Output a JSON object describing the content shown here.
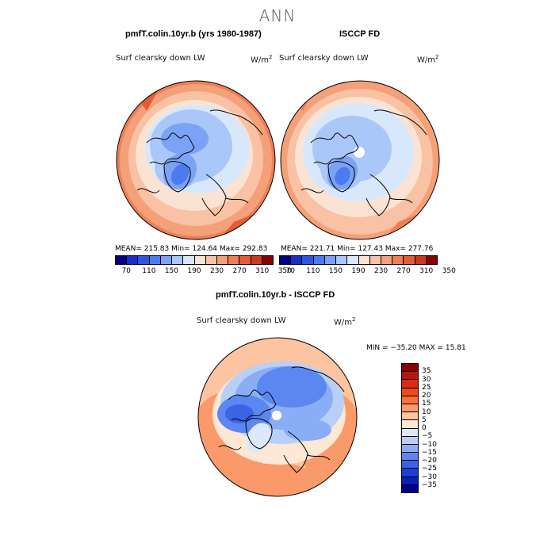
{
  "title": "ANN",
  "panels": {
    "model": {
      "title": "pmfT.colin.10yr.b (yrs 1980-1987)",
      "field_label": "Surf clearsky down LW",
      "units_base": "W/m",
      "units_exp": "2",
      "stats": "MEAN= 215.83   Min= 124.64   Max= 292.83"
    },
    "obs": {
      "title": "ISCCP FD",
      "field_label": "Surf clearsky down LW",
      "units_base": "W/m",
      "units_exp": "2",
      "stats": "MEAN= 221.71   Min= 127.43   Max= 277.76"
    },
    "diff": {
      "title": "pmfT.colin.10yr.b - ISCCP FD",
      "field_label": "Surf clearsky down LW",
      "units_base": "W/m",
      "units_exp": "2",
      "stats": "MIN = −35.20  MAX =  15.81"
    }
  },
  "top_colorbar": {
    "colors": [
      "#000080",
      "#1a2ccc",
      "#2f55e6",
      "#4a7cf0",
      "#7aa3f5",
      "#aac7fa",
      "#d8e8fc",
      "#fbe3d3",
      "#f9c2a4",
      "#f4a078",
      "#f07e55",
      "#e55c36",
      "#cc3a1e",
      "#8b0000"
    ],
    "tick_labels": [
      "70",
      "110",
      "150",
      "190",
      "230",
      "270",
      "310",
      "350"
    ]
  },
  "diff_colorbar": {
    "colors": [
      "#8b0000",
      "#b81414",
      "#d92b0d",
      "#f04a15",
      "#f8713a",
      "#fa9a6a",
      "#fcc4a0",
      "#fde8d6",
      "#dde9fb",
      "#b8d0f8",
      "#8aaef5",
      "#5d87f0",
      "#3a63e6",
      "#1e3ed8",
      "#0a1fb8",
      "#00008b"
    ],
    "tick_labels": [
      "35",
      "30",
      "25",
      "20",
      "15",
      "10",
      "5",
      "0",
      "−5",
      "−10",
      "−15",
      "−20",
      "−25",
      "−30",
      "−35"
    ]
  }
}
